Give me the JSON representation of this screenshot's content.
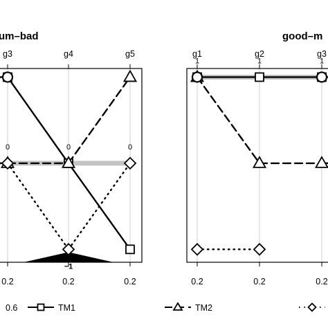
{
  "chart_data": [
    {
      "type": "line",
      "title": "um–bad",
      "categories": [
        "g3",
        "g4",
        "g5"
      ],
      "bottom_labels": [
        "0.2",
        "0.2",
        "0.2"
      ],
      "ylim": [
        -1.15,
        1.1
      ],
      "gridlines": "vertical",
      "series": [
        {
          "name": "TM1",
          "values": [
            1,
            0,
            -1
          ]
        },
        {
          "name": "TM2",
          "values": [
            0,
            0,
            1
          ]
        },
        {
          "name": "",
          "values": [
            0,
            -1,
            0
          ]
        },
        {
          "name": "",
          "values": [
            1,
            null,
            null
          ]
        }
      ],
      "thick_band": {
        "from": "g3",
        "to": "g5",
        "value": 0
      },
      "value_labels": [
        {
          "category": "g3",
          "value": 0,
          "text": "0"
        },
        {
          "category": "g4",
          "value": 0,
          "text": "0"
        },
        {
          "category": "g5",
          "value": 0,
          "text": "0"
        },
        {
          "category": "g4",
          "value": -1,
          "text": "−1"
        }
      ]
    },
    {
      "type": "line",
      "title": "good–m",
      "categories": [
        "g1",
        "g2",
        "g3"
      ],
      "bottom_labels": [
        "0.2",
        "0.2",
        "0.2"
      ],
      "ylim": [
        -1.15,
        1.1
      ],
      "gridlines": "vertical",
      "series": [
        {
          "name": "TM1",
          "values": [
            1,
            1,
            1
          ]
        },
        {
          "name": "TM2",
          "values": [
            1,
            0,
            0
          ]
        },
        {
          "name": "",
          "values": [
            -1,
            -1,
            null
          ]
        },
        {
          "name": "",
          "values": [
            1,
            null,
            1
          ]
        }
      ],
      "thick_band": {
        "from": "g1",
        "to": "g3",
        "value": 1
      },
      "value_labels": [
        {
          "category": "g1",
          "value": 1,
          "text": "1"
        },
        {
          "category": "g2",
          "value": 1,
          "text": "1"
        },
        {
          "category": "g3",
          "value": 1,
          "text": "1"
        }
      ]
    }
  ],
  "legend": {
    "placement": "bottom",
    "items": [
      {
        "label": "0.6",
        "marker": "none",
        "line": "none"
      },
      {
        "label": "TM1",
        "marker": "square",
        "line": "solid"
      },
      {
        "label": "TM2",
        "marker": "triangle",
        "line": "dashed"
      },
      {
        "label": "",
        "marker": "diamond",
        "line": "dotted"
      }
    ]
  }
}
